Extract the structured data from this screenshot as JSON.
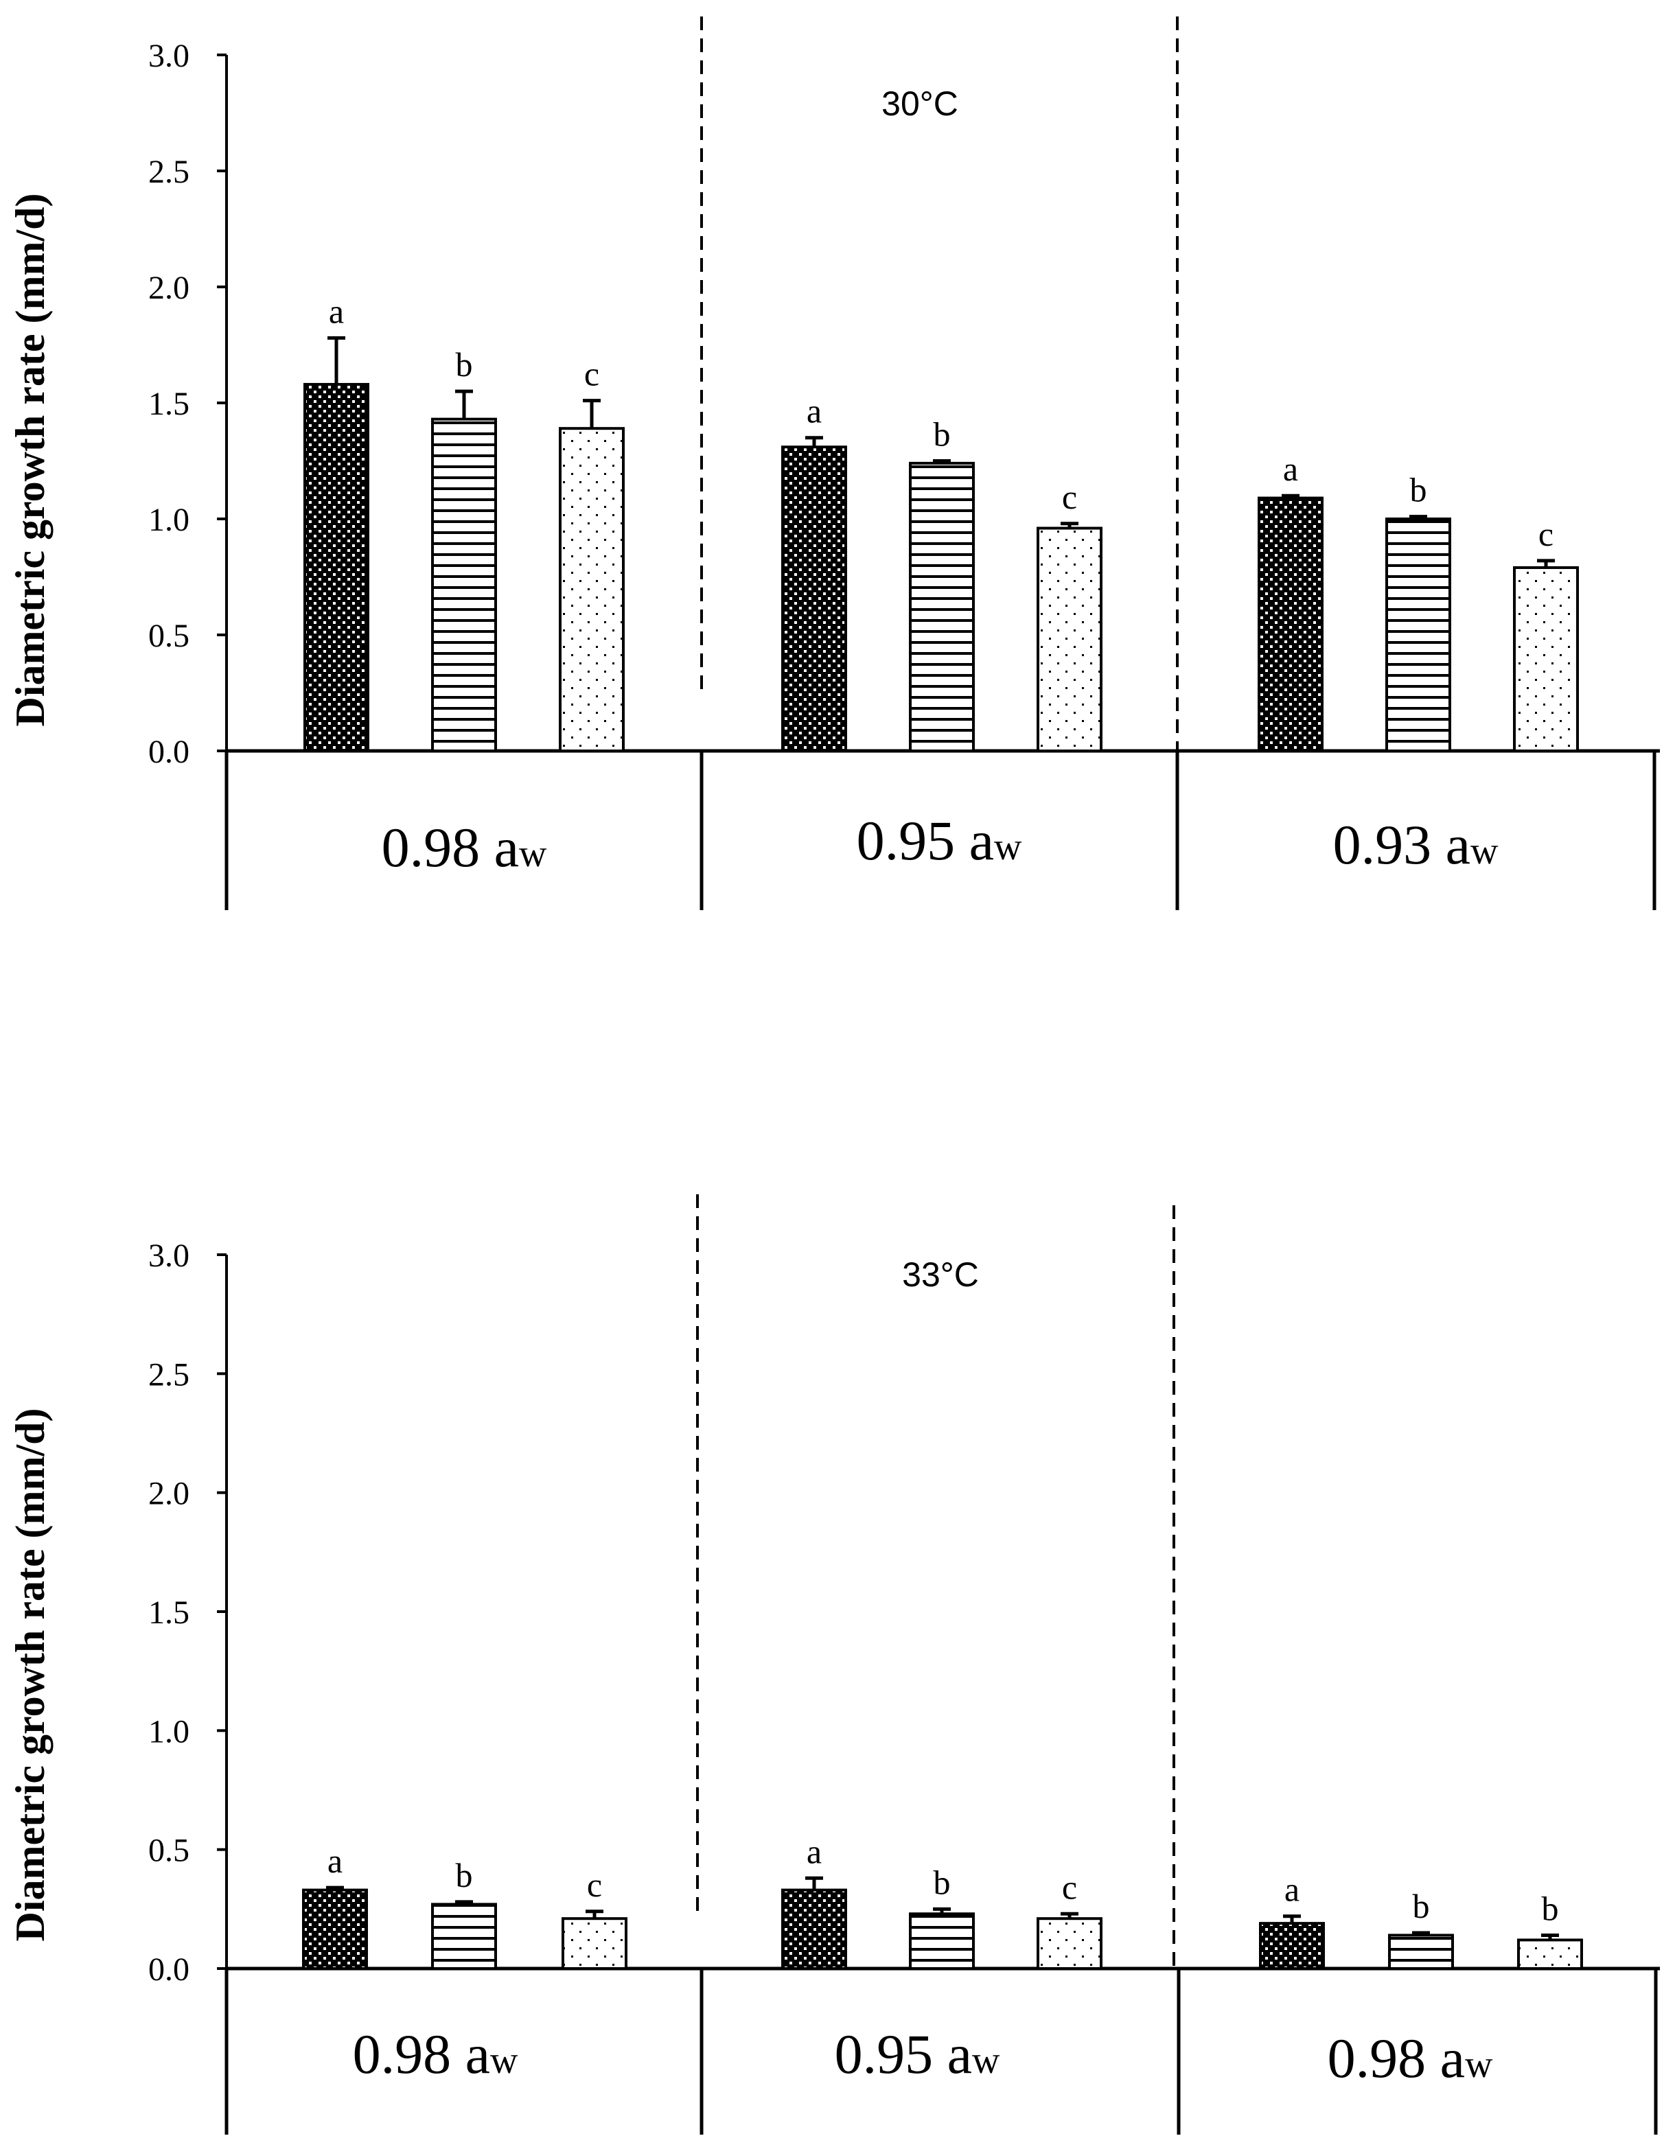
{
  "colors": {
    "axis": "#000000",
    "bar_edge": "#000000",
    "series1_fill": "#000000",
    "series1_pattern": "#ffffff",
    "series2_fill": "#ffffff",
    "series2_pattern": "#000000",
    "series3_fill": "#ffffff",
    "series3_pattern": "#000000",
    "error_bar_top": "#000000",
    "error_bar_bottom": "#555555"
  },
  "chart_data": [
    {
      "type": "bar",
      "title": "30°C",
      "ylabel": "Diametric growth rate (mm/d)",
      "xlabel": "",
      "ylim": [
        0,
        3.0
      ],
      "yticks": [
        "0.0",
        "0.5",
        "1.0",
        "1.5",
        "2.0",
        "2.5",
        "3.0"
      ],
      "grid": false,
      "legend": "none",
      "categories": [
        {
          "main": "0.98 a",
          "sub": "w"
        },
        {
          "main": "0.95 a",
          "sub": "w"
        },
        {
          "main": "0.93 a",
          "sub": "w"
        }
      ],
      "series": [
        {
          "name": "series-1",
          "pattern": "dense-dots-dark",
          "values": [
            1.58,
            1.31,
            1.09
          ],
          "errors": [
            0.2,
            0.04,
            0.01
          ],
          "letters": [
            "a",
            "a",
            "a"
          ]
        },
        {
          "name": "series-2",
          "pattern": "horizontal-stripes",
          "values": [
            1.43,
            1.24,
            1.0
          ],
          "errors": [
            0.12,
            0.01,
            0.01
          ],
          "letters": [
            "b",
            "b",
            "b"
          ]
        },
        {
          "name": "series-3",
          "pattern": "sparse-dots-light",
          "values": [
            1.39,
            0.96,
            0.79
          ],
          "errors": [
            0.12,
            0.02,
            0.03
          ],
          "letters": [
            "c",
            "c",
            "c"
          ]
        }
      ]
    },
    {
      "type": "bar",
      "title": "33°C",
      "ylabel": "Diametric growth rate (mm/d)",
      "xlabel": "",
      "ylim": [
        0,
        3.0
      ],
      "yticks": [
        "0.0",
        "0.5",
        "1.0",
        "1.5",
        "2.0",
        "2.5",
        "3.0"
      ],
      "grid": false,
      "legend": "none",
      "categories": [
        {
          "main": "0.98 a",
          "sub": "w"
        },
        {
          "main": "0.95 a",
          "sub": "w"
        },
        {
          "main": "0.98 a",
          "sub": "w"
        }
      ],
      "series": [
        {
          "name": "series-1",
          "pattern": "dense-dots-dark",
          "values": [
            0.33,
            0.33,
            0.19
          ],
          "errors": [
            0.01,
            0.05,
            0.03
          ],
          "letters": [
            "a",
            "a",
            "a"
          ]
        },
        {
          "name": "series-2",
          "pattern": "horizontal-stripes",
          "values": [
            0.27,
            0.23,
            0.14
          ],
          "errors": [
            0.01,
            0.02,
            0.01
          ],
          "letters": [
            "b",
            "b",
            "b"
          ]
        },
        {
          "name": "series-3",
          "pattern": "sparse-dots-light",
          "values": [
            0.21,
            0.21,
            0.12
          ],
          "errors": [
            0.03,
            0.02,
            0.02
          ],
          "letters": [
            "c",
            "c",
            "b"
          ]
        }
      ]
    }
  ]
}
